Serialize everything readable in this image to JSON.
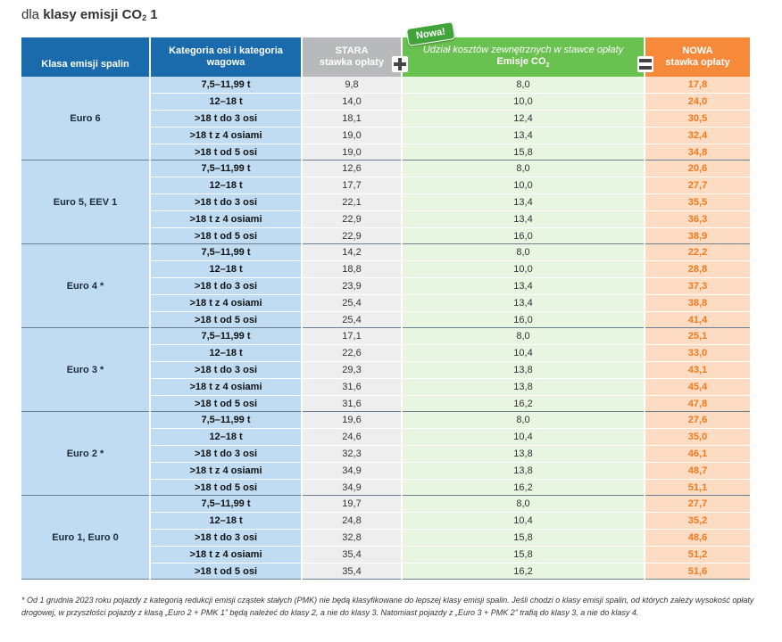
{
  "title": {
    "prefix": "dla ",
    "bold": "klasy emisji CO",
    "sub": "2",
    "suffix": " 1"
  },
  "header": {
    "class_col": "Klasa emisji spalin",
    "category_col": "Kategoria osi i kategoria wagowa",
    "old_col_top": "STARA",
    "old_col_bottom": "stawka opłaty",
    "co2_col_top": "Udział kosztów zewnętrznych w stawce opłaty",
    "co2_col_bottom": "Emisje CO",
    "co2_sub": "2",
    "new_col_top": "NOWA",
    "new_col_bottom": "stawka opłaty",
    "badge": "Nowa!"
  },
  "groups": [
    {
      "class": "Euro 6",
      "rows": [
        {
          "cat": "7,5–11,99 t",
          "old": "9,8",
          "co2": "8,0",
          "new": "17,8"
        },
        {
          "cat": "12–18 t",
          "old": "14,0",
          "co2": "10,0",
          "new": "24,0"
        },
        {
          "cat": ">18 t do 3 osi",
          "old": "18,1",
          "co2": "12,4",
          "new": "30,5"
        },
        {
          "cat": ">18 t z 4 osiami",
          "old": "19,0",
          "co2": "13,4",
          "new": "32,4"
        },
        {
          "cat": ">18 t od 5 osi",
          "old": "19,0",
          "co2": "15,8",
          "new": "34,8"
        }
      ]
    },
    {
      "class": "Euro 5, EEV 1",
      "rows": [
        {
          "cat": "7,5–11,99 t",
          "old": "12,6",
          "co2": "8,0",
          "new": "20,6"
        },
        {
          "cat": "12–18 t",
          "old": "17,7",
          "co2": "10,0",
          "new": "27,7"
        },
        {
          "cat": ">18 t do 3 osi",
          "old": "22,1",
          "co2": "13,4",
          "new": "35,5"
        },
        {
          "cat": ">18 t z 4 osiami",
          "old": "22,9",
          "co2": "13,4",
          "new": "36,3"
        },
        {
          "cat": ">18 t od 5 osi",
          "old": "22,9",
          "co2": "16,0",
          "new": "38,9"
        }
      ]
    },
    {
      "class": "Euro 4 *",
      "rows": [
        {
          "cat": "7,5–11,99 t",
          "old": "14,2",
          "co2": "8,0",
          "new": "22,2"
        },
        {
          "cat": "12–18 t",
          "old": "18,8",
          "co2": "10,0",
          "new": "28,8"
        },
        {
          "cat": ">18 t do 3 osi",
          "old": "23,9",
          "co2": "13,4",
          "new": "37,3"
        },
        {
          "cat": ">18 t z 4 osiami",
          "old": "25,4",
          "co2": "13,4",
          "new": "38,8"
        },
        {
          "cat": ">18 t od 5 osi",
          "old": "25,4",
          "co2": "16,0",
          "new": "41,4"
        }
      ]
    },
    {
      "class": "Euro 3 *",
      "rows": [
        {
          "cat": "7,5–11,99 t",
          "old": "17,1",
          "co2": "8,0",
          "new": "25,1"
        },
        {
          "cat": "12–18 t",
          "old": "22,6",
          "co2": "10,4",
          "new": "33,0"
        },
        {
          "cat": ">18 t do 3 osi",
          "old": "29,3",
          "co2": "13,8",
          "new": "43,1"
        },
        {
          "cat": ">18 t z 4 osiami",
          "old": "31,6",
          "co2": "13,8",
          "new": "45,4"
        },
        {
          "cat": ">18 t od 5 osi",
          "old": "31,6",
          "co2": "16,2",
          "new": "47,8"
        }
      ]
    },
    {
      "class": "Euro 2 *",
      "rows": [
        {
          "cat": "7,5–11,99 t",
          "old": "19,6",
          "co2": "8,0",
          "new": "27,6"
        },
        {
          "cat": "12–18 t",
          "old": "24,6",
          "co2": "10,4",
          "new": "35,0"
        },
        {
          "cat": ">18 t do 3 osi",
          "old": "32,3",
          "co2": "13,8",
          "new": "46,1"
        },
        {
          "cat": ">18 t z 4 osiami",
          "old": "34,9",
          "co2": "13,8",
          "new": "48,7"
        },
        {
          "cat": ">18 t od 5 osi",
          "old": "34,9",
          "co2": "16,2",
          "new": "51,1"
        }
      ]
    },
    {
      "class": "Euro 1, Euro 0",
      "rows": [
        {
          "cat": "7,5–11,99 t",
          "old": "19,7",
          "co2": "8,0",
          "new": "27,7"
        },
        {
          "cat": "12–18 t",
          "old": "24,8",
          "co2": "10,4",
          "new": "35,2"
        },
        {
          "cat": ">18 t do 3 osi",
          "old": "32,8",
          "co2": "15,8",
          "new": "48,6"
        },
        {
          "cat": ">18 t z 4 osiami",
          "old": "35,4",
          "co2": "15,8",
          "new": "51,2"
        },
        {
          "cat": ">18 t od 5 osi",
          "old": "35,4",
          "co2": "16,2",
          "new": "51,6"
        }
      ]
    }
  ],
  "footnote": "* Od 1 grudnia 2023 roku pojazdy z kategorią redukcji emisji cząstek stałych (PMK) nie będą klasyfikowane do lepszej klasy emisji spalin. Jeśli chodzi o klasy emisji spalin, od których zależy wysokość opłaty drogowej, w przyszłości pojazdy z klasą „Euro 2 + PMK 1” będą należeć do klasy 2, a nie do klasy 3. Natomiast pojazdy z „Euro 3 + PMK 2” trafią do klasy 3, a nie do klasy 4."
}
